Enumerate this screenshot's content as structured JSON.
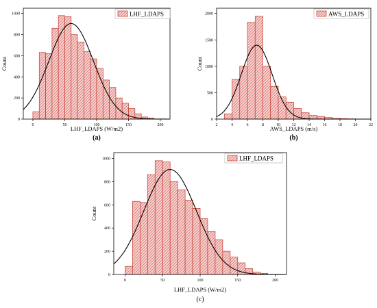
{
  "colors": {
    "bar_fill": "#f6d3d3",
    "bar_stroke": "#c0392b",
    "hatch": "#d7665b",
    "curve": "#000000",
    "axis": "#000000"
  },
  "chart_data": [
    {
      "type": "bar",
      "panel_label": "(a)",
      "xlabel": "LHF_LDAPS (W/m2)",
      "ylabel": "Count",
      "legend": "LHF_LDAPS",
      "legend_position": "top-right",
      "xlim": [
        -15,
        215
      ],
      "ylim": [
        0,
        1050
      ],
      "xticks": [
        0,
        50,
        100,
        150,
        200
      ],
      "yticks": [
        0,
        200,
        400,
        600,
        800,
        1000
      ],
      "bin_width": 10,
      "bins": [
        {
          "x": 0,
          "count": 70
        },
        {
          "x": 10,
          "count": 630
        },
        {
          "x": 20,
          "count": 620
        },
        {
          "x": 30,
          "count": 860
        },
        {
          "x": 40,
          "count": 980
        },
        {
          "x": 50,
          "count": 970
        },
        {
          "x": 60,
          "count": 800
        },
        {
          "x": 70,
          "count": 730
        },
        {
          "x": 80,
          "count": 640
        },
        {
          "x": 90,
          "count": 570
        },
        {
          "x": 100,
          "count": 480
        },
        {
          "x": 110,
          "count": 370
        },
        {
          "x": 120,
          "count": 300
        },
        {
          "x": 130,
          "count": 200
        },
        {
          "x": 140,
          "count": 150
        },
        {
          "x": 150,
          "count": 100
        },
        {
          "x": 160,
          "count": 50
        },
        {
          "x": 170,
          "count": 20
        },
        {
          "x": 180,
          "count": 10
        }
      ],
      "normal_fit": {
        "mean": 60,
        "sd": 35,
        "peak": 905
      }
    },
    {
      "type": "bar",
      "panel_label": "(b)",
      "xlabel": "AWS_LDAPS (m/s)",
      "ylabel": "Count",
      "legend": "AWS_LDAPS",
      "legend_position": "top-right",
      "xlim": [
        2,
        22
      ],
      "ylim": [
        0,
        2100
      ],
      "xticks": [
        2,
        4,
        6,
        8,
        10,
        12,
        14,
        16,
        18,
        20,
        22
      ],
      "yticks": [
        0,
        500,
        1000,
        1500,
        2000
      ],
      "bin_width": 1,
      "bins": [
        {
          "x": 3,
          "count": 100
        },
        {
          "x": 4,
          "count": 750
        },
        {
          "x": 5,
          "count": 1000
        },
        {
          "x": 6,
          "count": 1830
        },
        {
          "x": 7,
          "count": 1950
        },
        {
          "x": 8,
          "count": 1000
        },
        {
          "x": 9,
          "count": 620
        },
        {
          "x": 10,
          "count": 420
        },
        {
          "x": 11,
          "count": 320
        },
        {
          "x": 12,
          "count": 200
        },
        {
          "x": 13,
          "count": 120
        },
        {
          "x": 14,
          "count": 70
        },
        {
          "x": 15,
          "count": 50
        },
        {
          "x": 16,
          "count": 30
        },
        {
          "x": 17,
          "count": 15
        },
        {
          "x": 18,
          "count": 8
        },
        {
          "x": 19,
          "count": 5
        }
      ],
      "normal_fit": {
        "mean": 7.2,
        "sd": 2.0,
        "peak": 1400
      }
    },
    {
      "type": "bar",
      "panel_label": "(c)",
      "xlabel": "LHF_LDAPS (W/m2)",
      "ylabel": "Count",
      "legend": "LHF_LDAPS",
      "legend_position": "top-right",
      "xlim": [
        -15,
        215
      ],
      "ylim": [
        0,
        1050
      ],
      "xticks": [
        0,
        50,
        100,
        150,
        200
      ],
      "yticks": [
        0,
        200,
        400,
        600,
        800,
        1000
      ],
      "bin_width": 10,
      "bins": [
        {
          "x": 0,
          "count": 70
        },
        {
          "x": 10,
          "count": 630
        },
        {
          "x": 20,
          "count": 620
        },
        {
          "x": 30,
          "count": 860
        },
        {
          "x": 40,
          "count": 980
        },
        {
          "x": 50,
          "count": 970
        },
        {
          "x": 60,
          "count": 800
        },
        {
          "x": 70,
          "count": 730
        },
        {
          "x": 80,
          "count": 640
        },
        {
          "x": 90,
          "count": 570
        },
        {
          "x": 100,
          "count": 480
        },
        {
          "x": 110,
          "count": 370
        },
        {
          "x": 120,
          "count": 300
        },
        {
          "x": 130,
          "count": 200
        },
        {
          "x": 140,
          "count": 150
        },
        {
          "x": 150,
          "count": 100
        },
        {
          "x": 160,
          "count": 50
        },
        {
          "x": 170,
          "count": 20
        },
        {
          "x": 180,
          "count": 10
        }
      ],
      "normal_fit": {
        "mean": 60,
        "sd": 35,
        "peak": 905
      }
    }
  ]
}
